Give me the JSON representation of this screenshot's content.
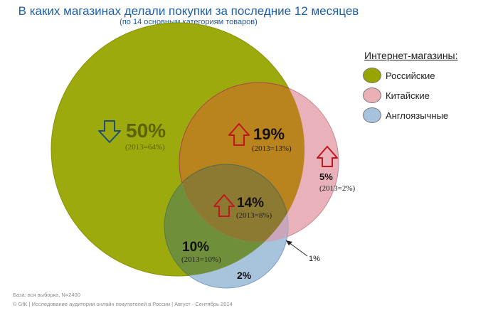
{
  "header": {
    "title": "В каких магазинах делали покупки за последние  12 месяцев",
    "subtitle": "(по 14 основным категориям товаров)"
  },
  "legend": {
    "title": "Интернет-магазины:",
    "items": [
      {
        "label": "Российские",
        "color": "#98a500"
      },
      {
        "label": "Китайские",
        "color": "#eab0b6"
      },
      {
        "label": "Англоязычные",
        "color": "#a7c2dc"
      }
    ]
  },
  "chart_data": {
    "type": "venn",
    "sets": [
      "Российские",
      "Китайские",
      "Англоязычные"
    ],
    "regions": [
      {
        "sets": [
          "Российские"
        ],
        "value": "50%",
        "baseline": "(2013=64%)",
        "trend": "down"
      },
      {
        "sets": [
          "Российские",
          "Китайские"
        ],
        "value": "19%",
        "baseline": "(2013=13%)",
        "trend": "up"
      },
      {
        "sets": [
          "Китайские"
        ],
        "value": "5%",
        "baseline": "(2013=2%)",
        "trend": "up"
      },
      {
        "sets": [
          "Российские",
          "Китайские",
          "Англоязычные"
        ],
        "value": "14%",
        "baseline": "(2013=8%)",
        "trend": "up"
      },
      {
        "sets": [
          "Российские",
          "Англоязычные"
        ],
        "value": "10%",
        "baseline": "(2013=10%)",
        "trend": "none"
      },
      {
        "sets": [
          "Англоязычные"
        ],
        "value": "2%",
        "baseline": "",
        "trend": "none"
      },
      {
        "sets": [
          "Китайские",
          "Англоязычные"
        ],
        "value": "1%",
        "baseline": "",
        "trend": "none"
      }
    ],
    "colors": {
      "russian": "#98a500",
      "chinese": "#e7a9b1",
      "english": "#9fbcd8",
      "down_arrow": "#1f4e79",
      "up_arrow": "#c0161f"
    }
  },
  "footer": {
    "base": "База: вся выборка, N=2400",
    "copyright": "© GfK | Исследование аудитории онлайн покупателей в России | Август - Сентябрь 2014"
  }
}
